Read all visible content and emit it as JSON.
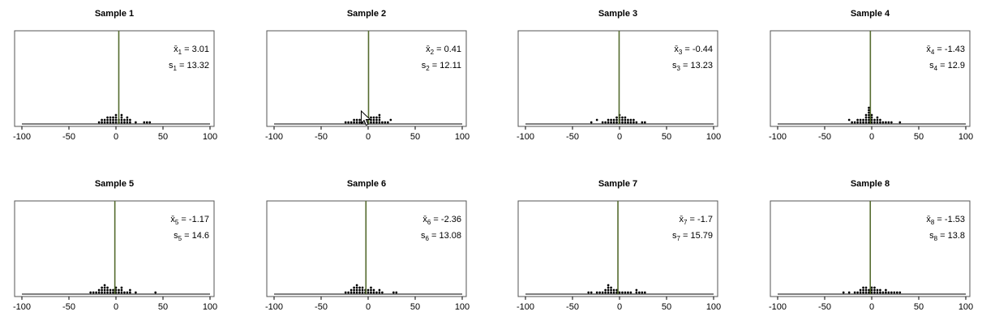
{
  "colors": {
    "mean_line": "#556b2f",
    "frame": "#555555",
    "dots": "#000000"
  },
  "chart_data": [
    {
      "type": "scatter",
      "title": "Sample 1",
      "xlim": [
        -100,
        100
      ],
      "ticks": [
        -100,
        -50,
        0,
        50,
        100
      ],
      "mean": 3.01,
      "stats": {
        "mean_sym": "x̄",
        "sd_sym": "s",
        "sub": "1",
        "eq": " = ",
        "mean_text": "3.01",
        "sd_text": "13.32"
      },
      "dots": [
        [
          -18,
          1
        ],
        [
          -15,
          1
        ],
        [
          -15,
          2
        ],
        [
          -12,
          1
        ],
        [
          -12,
          2
        ],
        [
          -9,
          1
        ],
        [
          -9,
          2
        ],
        [
          -9,
          3
        ],
        [
          -6,
          1
        ],
        [
          -6,
          2
        ],
        [
          -6,
          3
        ],
        [
          -3,
          1
        ],
        [
          -3,
          2
        ],
        [
          -3,
          3
        ],
        [
          0,
          1
        ],
        [
          0,
          2
        ],
        [
          0,
          3
        ],
        [
          0,
          4
        ],
        [
          3,
          1
        ],
        [
          3,
          2
        ],
        [
          6,
          1
        ],
        [
          6,
          2
        ],
        [
          6,
          3
        ],
        [
          6,
          4
        ],
        [
          9,
          1
        ],
        [
          9,
          2
        ],
        [
          12,
          1
        ],
        [
          12,
          2
        ],
        [
          12,
          3
        ],
        [
          15,
          1
        ],
        [
          15,
          2
        ],
        [
          21,
          1
        ],
        [
          30,
          1
        ],
        [
          33,
          1
        ],
        [
          36,
          1
        ]
      ]
    },
    {
      "type": "scatter",
      "title": "Sample 2",
      "xlim": [
        -100,
        100
      ],
      "ticks": [
        -100,
        -50,
        0,
        50,
        100
      ],
      "mean": 0.41,
      "stats": {
        "mean_sym": "x̄",
        "sd_sym": "s",
        "sub": "2",
        "eq": " = ",
        "mean_text": "0.41",
        "sd_text": "12.11"
      },
      "dots": [
        [
          -24,
          1
        ],
        [
          -21,
          1
        ],
        [
          -18,
          1
        ],
        [
          -15,
          1
        ],
        [
          -15,
          2
        ],
        [
          -12,
          1
        ],
        [
          -12,
          2
        ],
        [
          -9,
          1
        ],
        [
          -9,
          2
        ],
        [
          -6,
          1
        ],
        [
          -6,
          2
        ],
        [
          -6,
          3
        ],
        [
          -3,
          1
        ],
        [
          -3,
          2
        ],
        [
          -3,
          3
        ],
        [
          0,
          1
        ],
        [
          0,
          2
        ],
        [
          3,
          1
        ],
        [
          3,
          2
        ],
        [
          3,
          3
        ],
        [
          6,
          1
        ],
        [
          6,
          2
        ],
        [
          6,
          3
        ],
        [
          9,
          1
        ],
        [
          9,
          2
        ],
        [
          9,
          3
        ],
        [
          12,
          1
        ],
        [
          12,
          2
        ],
        [
          12,
          3
        ],
        [
          12,
          4
        ],
        [
          15,
          1
        ],
        [
          18,
          1
        ],
        [
          21,
          1
        ],
        [
          24,
          2
        ]
      ],
      "cursor": true
    },
    {
      "type": "scatter",
      "title": "Sample 3",
      "xlim": [
        -100,
        100
      ],
      "ticks": [
        -100,
        -50,
        0,
        50,
        100
      ],
      "mean": -0.44,
      "stats": {
        "mean_sym": "x̄",
        "sd_sym": "s",
        "sub": "3",
        "eq": " = ",
        "mean_text": "-0.44",
        "sd_text": "13.23"
      },
      "dots": [
        [
          -30,
          1
        ],
        [
          -24,
          2
        ],
        [
          -18,
          1
        ],
        [
          -15,
          1
        ],
        [
          -12,
          1
        ],
        [
          -12,
          2
        ],
        [
          -9,
          1
        ],
        [
          -9,
          2
        ],
        [
          -6,
          1
        ],
        [
          -6,
          2
        ],
        [
          -3,
          1
        ],
        [
          -3,
          2
        ],
        [
          -3,
          3
        ],
        [
          0,
          1
        ],
        [
          0,
          2
        ],
        [
          0,
          3
        ],
        [
          0,
          4
        ],
        [
          3,
          1
        ],
        [
          3,
          2
        ],
        [
          3,
          3
        ],
        [
          6,
          1
        ],
        [
          6,
          2
        ],
        [
          6,
          3
        ],
        [
          9,
          1
        ],
        [
          9,
          2
        ],
        [
          12,
          1
        ],
        [
          12,
          2
        ],
        [
          15,
          1
        ],
        [
          15,
          2
        ],
        [
          18,
          1
        ],
        [
          24,
          1
        ],
        [
          27,
          1
        ]
      ]
    },
    {
      "type": "scatter",
      "title": "Sample 4",
      "xlim": [
        -100,
        100
      ],
      "ticks": [
        -100,
        -50,
        0,
        50,
        100
      ],
      "mean": -1.43,
      "stats": {
        "mean_sym": "x̄",
        "sd_sym": "s",
        "sub": "4",
        "eq": " = ",
        "mean_text": "-1.43",
        "sd_text": "12.9"
      },
      "dots": [
        [
          -24,
          2
        ],
        [
          -21,
          1
        ],
        [
          -18,
          1
        ],
        [
          -15,
          1
        ],
        [
          -15,
          2
        ],
        [
          -12,
          1
        ],
        [
          -12,
          2
        ],
        [
          -9,
          1
        ],
        [
          -9,
          2
        ],
        [
          -6,
          1
        ],
        [
          -6,
          2
        ],
        [
          -6,
          3
        ],
        [
          -6,
          4
        ],
        [
          -3,
          1
        ],
        [
          -3,
          2
        ],
        [
          -3,
          3
        ],
        [
          -3,
          4
        ],
        [
          -3,
          5
        ],
        [
          -3,
          6
        ],
        [
          -3,
          7
        ],
        [
          0,
          1
        ],
        [
          0,
          2
        ],
        [
          0,
          3
        ],
        [
          0,
          4
        ],
        [
          3,
          1
        ],
        [
          3,
          2
        ],
        [
          6,
          1
        ],
        [
          6,
          2
        ],
        [
          6,
          3
        ],
        [
          9,
          1
        ],
        [
          9,
          2
        ],
        [
          12,
          1
        ],
        [
          15,
          1
        ],
        [
          18,
          1
        ],
        [
          21,
          1
        ],
        [
          30,
          1
        ]
      ]
    },
    {
      "type": "scatter",
      "title": "Sample 5",
      "xlim": [
        -100,
        100
      ],
      "ticks": [
        -100,
        -50,
        0,
        50,
        100
      ],
      "mean": -1.17,
      "stats": {
        "mean_sym": "x̄",
        "sd_sym": "s",
        "sub": "5",
        "eq": " = ",
        "mean_text": "-1.17",
        "sd_text": "14.6"
      },
      "dots": [
        [
          -27,
          1
        ],
        [
          -24,
          1
        ],
        [
          -21,
          1
        ],
        [
          -18,
          1
        ],
        [
          -18,
          2
        ],
        [
          -15,
          1
        ],
        [
          -15,
          2
        ],
        [
          -15,
          3
        ],
        [
          -12,
          1
        ],
        [
          -12,
          2
        ],
        [
          -12,
          3
        ],
        [
          -12,
          4
        ],
        [
          -9,
          1
        ],
        [
          -9,
          2
        ],
        [
          -9,
          3
        ],
        [
          -6,
          1
        ],
        [
          -6,
          2
        ],
        [
          -3,
          1
        ],
        [
          -3,
          2
        ],
        [
          0,
          1
        ],
        [
          0,
          2
        ],
        [
          0,
          3
        ],
        [
          3,
          1
        ],
        [
          3,
          2
        ],
        [
          6,
          1
        ],
        [
          6,
          2
        ],
        [
          6,
          3
        ],
        [
          9,
          1
        ],
        [
          12,
          1
        ],
        [
          15,
          1
        ],
        [
          15,
          2
        ],
        [
          21,
          1
        ],
        [
          42,
          1
        ]
      ]
    },
    {
      "type": "scatter",
      "title": "Sample 6",
      "xlim": [
        -100,
        100
      ],
      "ticks": [
        -100,
        -50,
        0,
        50,
        100
      ],
      "mean": -2.36,
      "stats": {
        "mean_sym": "x̄",
        "sd_sym": "s",
        "sub": "6",
        "eq": " = ",
        "mean_text": "-2.36",
        "sd_text": "13.08"
      },
      "dots": [
        [
          -24,
          1
        ],
        [
          -21,
          1
        ],
        [
          -18,
          1
        ],
        [
          -18,
          2
        ],
        [
          -15,
          1
        ],
        [
          -15,
          2
        ],
        [
          -15,
          3
        ],
        [
          -12,
          1
        ],
        [
          -12,
          2
        ],
        [
          -12,
          3
        ],
        [
          -12,
          4
        ],
        [
          -9,
          1
        ],
        [
          -9,
          2
        ],
        [
          -9,
          3
        ],
        [
          -6,
          1
        ],
        [
          -6,
          2
        ],
        [
          -6,
          3
        ],
        [
          -3,
          1
        ],
        [
          -3,
          2
        ],
        [
          0,
          1
        ],
        [
          0,
          2
        ],
        [
          3,
          1
        ],
        [
          3,
          2
        ],
        [
          3,
          3
        ],
        [
          6,
          1
        ],
        [
          6,
          2
        ],
        [
          9,
          1
        ],
        [
          12,
          1
        ],
        [
          12,
          2
        ],
        [
          15,
          1
        ],
        [
          27,
          1
        ],
        [
          30,
          1
        ]
      ]
    },
    {
      "type": "scatter",
      "title": "Sample 7",
      "xlim": [
        -100,
        100
      ],
      "ticks": [
        -100,
        -50,
        0,
        50,
        100
      ],
      "mean": -1.7,
      "stats": {
        "mean_sym": "x̄",
        "sd_sym": "s",
        "sub": "7",
        "eq": " = ",
        "mean_text": "-1.7",
        "sd_text": "15.79"
      },
      "dots": [
        [
          -33,
          1
        ],
        [
          -30,
          1
        ],
        [
          -24,
          1
        ],
        [
          -21,
          1
        ],
        [
          -18,
          1
        ],
        [
          -15,
          1
        ],
        [
          -15,
          2
        ],
        [
          -12,
          1
        ],
        [
          -12,
          2
        ],
        [
          -12,
          3
        ],
        [
          -12,
          4
        ],
        [
          -9,
          1
        ],
        [
          -9,
          2
        ],
        [
          -9,
          3
        ],
        [
          -6,
          1
        ],
        [
          -6,
          2
        ],
        [
          -3,
          1
        ],
        [
          -3,
          2
        ],
        [
          0,
          1
        ],
        [
          3,
          1
        ],
        [
          6,
          1
        ],
        [
          9,
          1
        ],
        [
          12,
          1
        ],
        [
          18,
          1
        ],
        [
          18,
          2
        ],
        [
          21,
          1
        ],
        [
          24,
          1
        ],
        [
          27,
          1
        ]
      ]
    },
    {
      "type": "scatter",
      "title": "Sample 8",
      "xlim": [
        -100,
        100
      ],
      "ticks": [
        -100,
        -50,
        0,
        50,
        100
      ],
      "mean": -1.53,
      "stats": {
        "mean_sym": "x̄",
        "sd_sym": "s",
        "sub": "8",
        "eq": " = ",
        "mean_text": "-1.53",
        "sd_text": "13.8"
      },
      "dots": [
        [
          -30,
          1
        ],
        [
          -24,
          1
        ],
        [
          -18,
          1
        ],
        [
          -15,
          1
        ],
        [
          -12,
          1
        ],
        [
          -12,
          2
        ],
        [
          -9,
          1
        ],
        [
          -9,
          2
        ],
        [
          -9,
          3
        ],
        [
          -6,
          1
        ],
        [
          -6,
          2
        ],
        [
          -6,
          3
        ],
        [
          -3,
          1
        ],
        [
          -3,
          2
        ],
        [
          0,
          1
        ],
        [
          0,
          2
        ],
        [
          0,
          3
        ],
        [
          3,
          1
        ],
        [
          3,
          2
        ],
        [
          3,
          3
        ],
        [
          6,
          1
        ],
        [
          6,
          2
        ],
        [
          9,
          1
        ],
        [
          9,
          2
        ],
        [
          12,
          1
        ],
        [
          15,
          1
        ],
        [
          15,
          2
        ],
        [
          18,
          1
        ],
        [
          21,
          1
        ],
        [
          24,
          1
        ],
        [
          27,
          1
        ],
        [
          30,
          1
        ]
      ]
    }
  ]
}
